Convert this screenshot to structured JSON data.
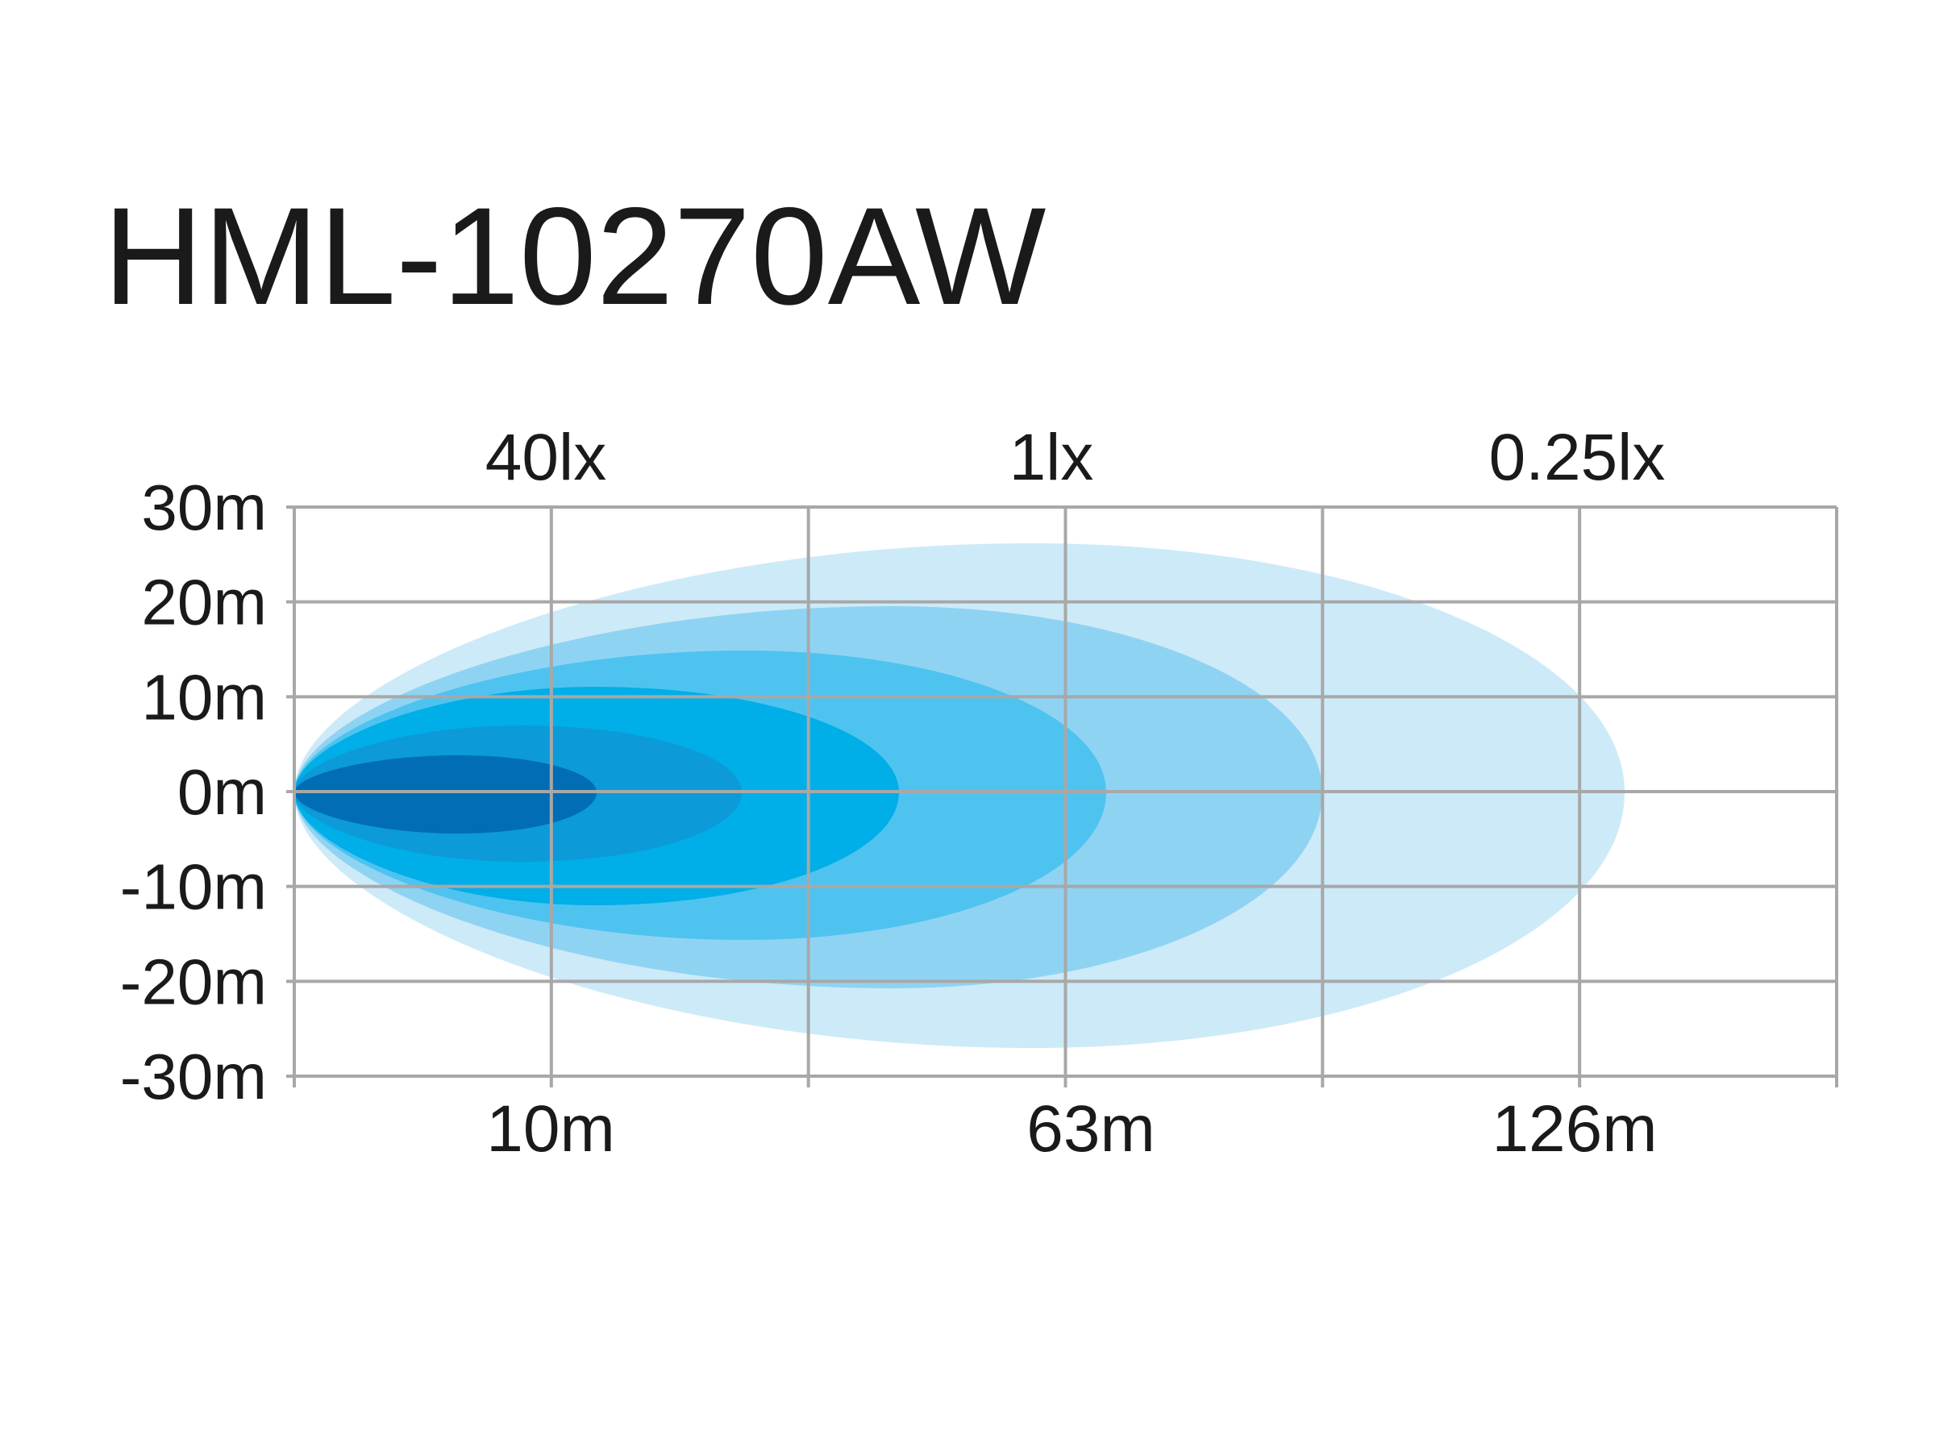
{
  "title": "HML-10270AW",
  "y_labels": [
    "30m",
    "20m",
    "10m",
    "0m",
    "-10m",
    "-20m",
    "-30m"
  ],
  "top_labels": [
    "40lx",
    "1lx",
    "0.25lx"
  ],
  "bottom_labels": [
    "10m",
    "63m",
    "126m"
  ]
}
